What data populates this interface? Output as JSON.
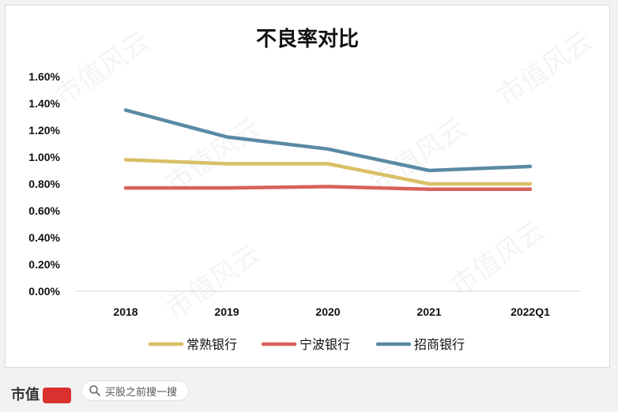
{
  "chart_data": {
    "type": "line",
    "title": "不良率对比",
    "categories": [
      "2018",
      "2019",
      "2020",
      "2021",
      "2022Q1"
    ],
    "y_ticks": [
      "0.00%",
      "0.20%",
      "0.40%",
      "0.60%",
      "0.80%",
      "1.00%",
      "1.20%",
      "1.40%",
      "1.60%"
    ],
    "ylim": [
      0,
      1.6
    ],
    "grid": false,
    "legend_position": "bottom",
    "series": [
      {
        "name": "常熟银行",
        "color": "#d9bf66",
        "values": [
          0.98,
          0.95,
          0.95,
          0.8,
          0.8
        ]
      },
      {
        "name": "宁波银行",
        "color": "#d9625a",
        "values": [
          0.77,
          0.77,
          0.78,
          0.76,
          0.76
        ]
      },
      {
        "name": "招商银行",
        "color": "#5a8aa4",
        "values": [
          1.35,
          1.15,
          1.06,
          0.9,
          0.93
        ]
      }
    ]
  },
  "watermark": {
    "text": "市值风云"
  },
  "footer": {
    "brand": "市值",
    "search_placeholder": "买股之前搜一搜"
  }
}
